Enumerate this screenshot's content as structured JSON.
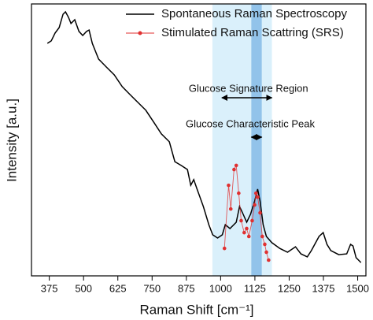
{
  "chart_data": {
    "type": "line",
    "x_label": "Raman Shift [cm⁻¹]",
    "y_label": "Intensity [a.u.]",
    "xlim": [
      310,
      1530
    ],
    "ylim": [
      0,
      100
    ],
    "xticks": [
      375,
      500,
      625,
      750,
      875,
      1000,
      1125,
      1250,
      1375,
      1500
    ],
    "legend": "upper right",
    "regions": [
      {
        "label": "Glucose Signature Region",
        "xlim": [
          970,
          1187
        ],
        "color": "#d6eefb"
      },
      {
        "label": "Glucose Characteristic Peak",
        "xlim": [
          1112,
          1150
        ],
        "color": "#7fb8e6"
      }
    ],
    "series": [
      {
        "name": "Spontaneous Raman Spectroscopy",
        "color": "#000000",
        "marker": false,
        "x": [
          368,
          382,
          396,
          411,
          425,
          434,
          445,
          454,
          468,
          483,
          497,
          511,
          520,
          532,
          555,
          583,
          612,
          641,
          669,
          698,
          727,
          756,
          784,
          813,
          833,
          856,
          879,
          891,
          902,
          914,
          937,
          957,
          971,
          989,
          1006,
          1017,
          1034,
          1057,
          1069,
          1080,
          1095,
          1109,
          1124,
          1135,
          1144,
          1155,
          1167,
          1187,
          1216,
          1244,
          1273,
          1293,
          1316,
          1331,
          1359,
          1374,
          1388,
          1402,
          1431,
          1460,
          1474,
          1483,
          1494,
          1512
        ],
        "values": [
          85.5,
          86.4,
          89.3,
          91.3,
          96.2,
          97.1,
          95.1,
          92.8,
          94.2,
          89.9,
          88.4,
          89.9,
          90.4,
          85.5,
          79.7,
          76.8,
          73.9,
          69.6,
          66.7,
          63.8,
          60.9,
          56.5,
          52.2,
          49.3,
          42.0,
          40.6,
          39.1,
          33.3,
          35.4,
          31.9,
          25.5,
          18.8,
          15.1,
          13.9,
          15.1,
          18.8,
          17.4,
          19.7,
          25.5,
          23.2,
          19.7,
          22.6,
          27.5,
          31.9,
          27.5,
          18.8,
          14.5,
          12.2,
          10.1,
          8.7,
          10.7,
          8.1,
          7.0,
          9.3,
          14.5,
          15.9,
          11.6,
          9.3,
          7.8,
          8.1,
          11.6,
          11.0,
          6.7,
          4.9
        ]
      },
      {
        "name": "Stimulated Raman Scattring (SRS)",
        "color": "#e03030",
        "marker": true,
        "x": [
          1014,
          1029,
          1037,
          1049,
          1057,
          1066,
          1075,
          1086,
          1095,
          1103,
          1115,
          1124,
          1129,
          1135,
          1144,
          1152,
          1161,
          1167,
          1175
        ],
        "values": [
          10.1,
          33.3,
          24.6,
          39.1,
          40.6,
          30.4,
          20.3,
          15.9,
          17.4,
          14.5,
          20.3,
          26.1,
          30.4,
          29.0,
          23.2,
          14.5,
          11.6,
          8.7,
          5.8
        ]
      }
    ]
  }
}
